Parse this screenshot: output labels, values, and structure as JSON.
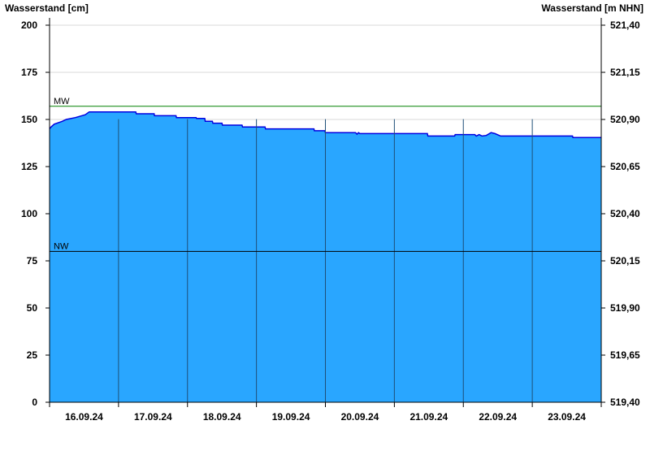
{
  "chart_data": {
    "type": "area",
    "ylabel_left": "Wasserstand [cm]",
    "ylabel_right": "Wasserstand [m NHN]",
    "ylim": [
      0,
      200
    ],
    "yticks_left": [
      "0",
      "25",
      "50",
      "75",
      "100",
      "125",
      "150",
      "175",
      "200"
    ],
    "yticks_right": [
      "519,40",
      "519,65",
      "519,90",
      "520,15",
      "520,40",
      "520,65",
      "520,90",
      "521,15",
      "521,40"
    ],
    "xlim": [
      "2024-09-16T00:00",
      "2024-09-24T00:00"
    ],
    "xtick_labels": [
      "16.09.24",
      "17.09.24",
      "18.09.24",
      "19.09.24",
      "20.09.24",
      "21.09.24",
      "22.09.24",
      "23.09.24"
    ],
    "grid": true,
    "reference_lines": [
      {
        "label": "MW",
        "value": 157,
        "color": "#008000"
      },
      {
        "label": "NW",
        "value": 80,
        "color": "#000000"
      }
    ],
    "colors": {
      "fill": "#29a6ff",
      "line": "#0000e0",
      "grid": "#d9d9d9",
      "day_lines": "#1e4f78"
    },
    "series": [
      {
        "points": [
          [
            "2024-09-16T00:00",
            145
          ],
          [
            "2024-09-16T00:30",
            146
          ],
          [
            "2024-09-16T01:36",
            147.5
          ],
          [
            "2024-09-16T04:24",
            149
          ],
          [
            "2024-09-16T05:48",
            150
          ],
          [
            "2024-09-16T09:00",
            151
          ],
          [
            "2024-09-16T12:24",
            152.5
          ],
          [
            "2024-09-16T13:48",
            154
          ],
          [
            "2024-09-17T06:00",
            154
          ],
          [
            "2024-09-17T06:10",
            153
          ],
          [
            "2024-09-17T12:24",
            153
          ],
          [
            "2024-09-17T12:30",
            152
          ],
          [
            "2024-09-17T20:00",
            152
          ],
          [
            "2024-09-17T20:10",
            151
          ],
          [
            "2024-09-18T03:00",
            151
          ],
          [
            "2024-09-18T03:10",
            150.5
          ],
          [
            "2024-09-18T06:00",
            150.5
          ],
          [
            "2024-09-18T06:10",
            149
          ],
          [
            "2024-09-18T08:40",
            149
          ],
          [
            "2024-09-18T08:50",
            148
          ],
          [
            "2024-09-18T12:00",
            148
          ],
          [
            "2024-09-18T12:10",
            147
          ],
          [
            "2024-09-18T19:00",
            147
          ],
          [
            "2024-09-18T19:10",
            146
          ],
          [
            "2024-09-19T03:00",
            146
          ],
          [
            "2024-09-19T03:10",
            145
          ],
          [
            "2024-09-19T20:00",
            145
          ],
          [
            "2024-09-19T20:10",
            144
          ],
          [
            "2024-09-19T23:50",
            144
          ],
          [
            "2024-09-20T00:00",
            143
          ],
          [
            "2024-09-20T10:30",
            143
          ],
          [
            "2024-09-20T11:00",
            142.2
          ],
          [
            "2024-09-20T11:30",
            143
          ],
          [
            "2024-09-20T12:00",
            142.5
          ],
          [
            "2024-09-21T11:30",
            142.5
          ],
          [
            "2024-09-21T11:40",
            141.2
          ],
          [
            "2024-09-21T21:00",
            141.2
          ],
          [
            "2024-09-21T21:10",
            142
          ],
          [
            "2024-09-22T04:00",
            142
          ],
          [
            "2024-09-22T04:30",
            141.2
          ],
          [
            "2024-09-22T05:30",
            142
          ],
          [
            "2024-09-22T06:30",
            141.2
          ],
          [
            "2024-09-22T08:00",
            141.5
          ],
          [
            "2024-09-22T09:40",
            143
          ],
          [
            "2024-09-22T11:00",
            142.5
          ],
          [
            "2024-09-22T13:00",
            141.2
          ],
          [
            "2024-09-23T14:00",
            141.2
          ],
          [
            "2024-09-23T14:10",
            140.4
          ],
          [
            "2024-09-24T00:00",
            140.4
          ]
        ]
      }
    ]
  }
}
